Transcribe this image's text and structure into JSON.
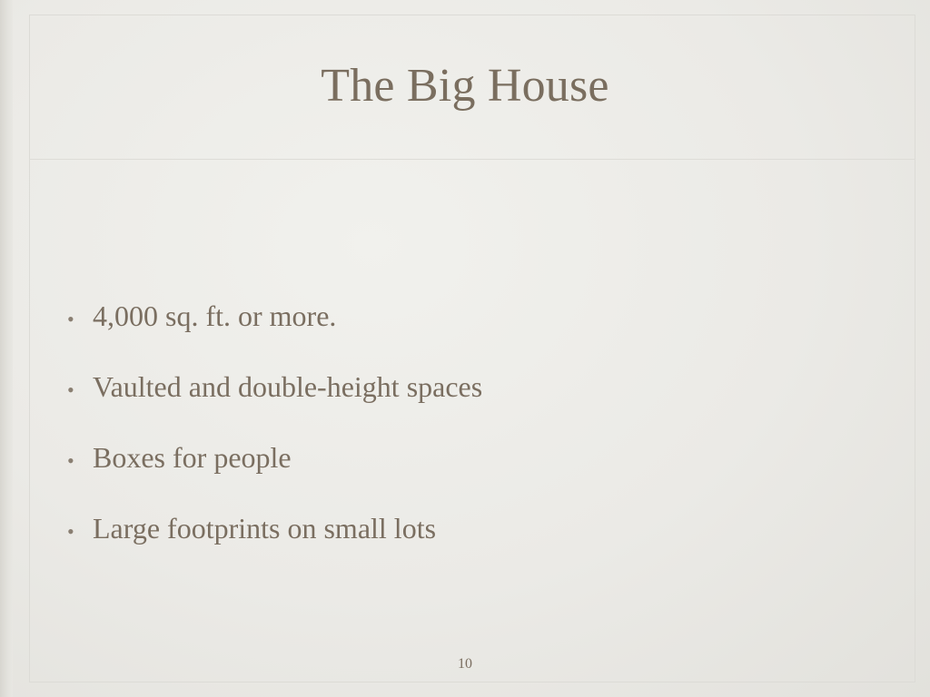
{
  "slide": {
    "title": "The Big House",
    "bullets": [
      "4,000 sq. ft. or more.",
      "Vaulted and double-height spaces",
      "Boxes for people",
      "Large footprints on small lots"
    ],
    "bullet_symbol": "•",
    "page_number": "10"
  },
  "colors": {
    "text": "#7a6e60",
    "background": "#ecebe7"
  }
}
